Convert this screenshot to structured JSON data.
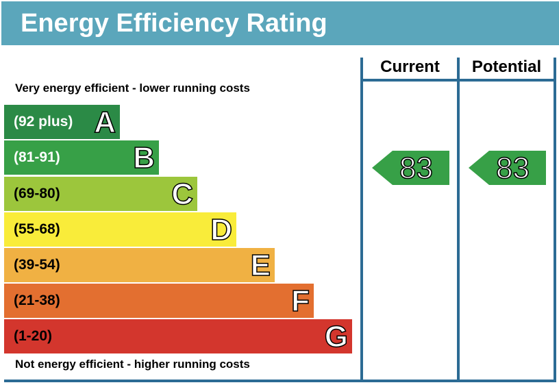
{
  "header": {
    "title": "Energy Efficiency Rating"
  },
  "columns": {
    "current": "Current",
    "potential": "Potential"
  },
  "descriptions": {
    "top": "Very energy efficient - lower running costs",
    "bottom": "Not energy efficient - higher running costs"
  },
  "chart_data": {
    "type": "bar",
    "title": "Energy Efficiency Rating",
    "bands": [
      {
        "letter": "A",
        "range": "(92 plus)",
        "color": "#2b8a46",
        "text_color": "#ffffff"
      },
      {
        "letter": "B",
        "range": "(81-91)",
        "color": "#37a047",
        "text_color": "#ffffff"
      },
      {
        "letter": "C",
        "range": "(69-80)",
        "color": "#9cc63c",
        "text_color": "#000000"
      },
      {
        "letter": "D",
        "range": "(55-68)",
        "color": "#f9ec3a",
        "text_color": "#000000"
      },
      {
        "letter": "E",
        "range": "(39-54)",
        "color": "#f0b143",
        "text_color": "#000000"
      },
      {
        "letter": "F",
        "range": "(21-38)",
        "color": "#e36f30",
        "text_color": "#000000"
      },
      {
        "letter": "G",
        "range": "(1-20)",
        "color": "#d3362d",
        "text_color": "#000000"
      }
    ],
    "current": {
      "value": "83",
      "band": "B",
      "color": "#37a047"
    },
    "potential": {
      "value": "83",
      "band": "B",
      "color": "#37a047"
    }
  }
}
